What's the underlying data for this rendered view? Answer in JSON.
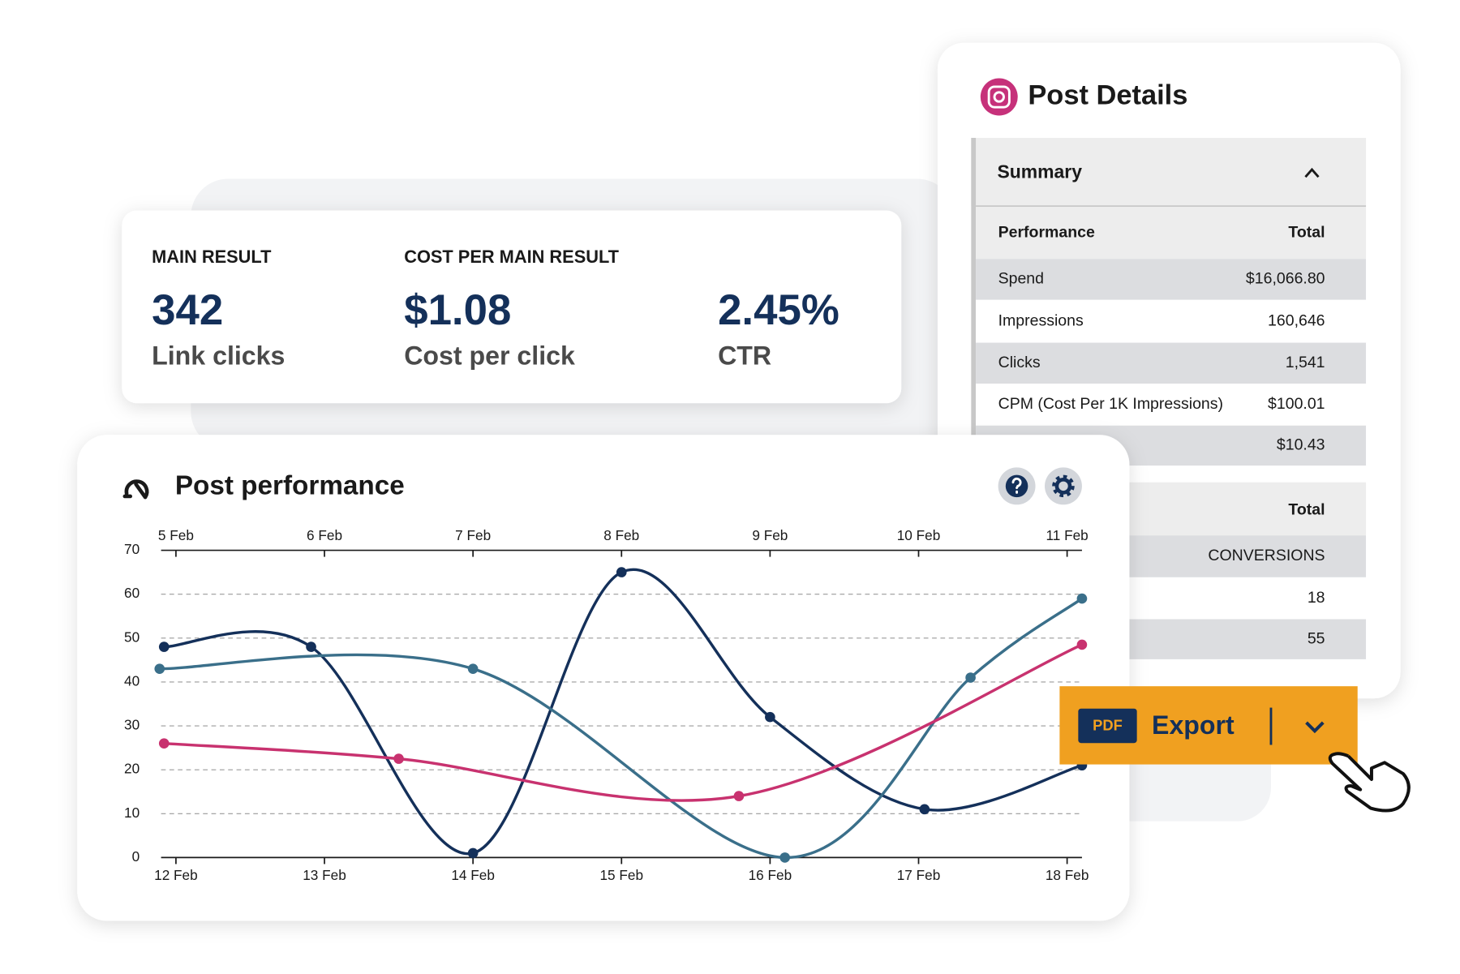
{
  "kpis": [
    {
      "label": "MAIN RESULT",
      "value": "342",
      "caption": "Link clicks"
    },
    {
      "label": "COST PER MAIN RESULT",
      "value": "$1.08",
      "caption": "Cost per click"
    },
    {
      "value": "2.45%",
      "caption": "CTR"
    }
  ],
  "post_details": {
    "title": "Post Details",
    "summary": "Summary",
    "performance": {
      "header": [
        "Performance",
        "Total"
      ],
      "rows": [
        {
          "label": "Spend",
          "value": "$16,066.80"
        },
        {
          "label": "Impressions",
          "value": "160,646"
        },
        {
          "label": "Clicks",
          "value": "1,541"
        },
        {
          "label": "CPM (Cost Per 1K Impressions)",
          "value": "$100.01"
        },
        {
          "value": "$10.43"
        }
      ]
    },
    "conversions": {
      "header": "Total",
      "rows": [
        "CONVERSIONS",
        "18",
        "55"
      ]
    }
  },
  "export": {
    "badge": "PDF",
    "label": "Export"
  },
  "chart_data": {
    "type": "line",
    "title": "Post performance",
    "xlim": [
      11.9,
      18.1
    ],
    "xticks": [
      {
        "value": 12,
        "label": "12 Feb"
      },
      {
        "value": 13,
        "label": "13 Feb"
      },
      {
        "value": 14,
        "label": "14 Feb"
      },
      {
        "value": 15,
        "label": "15 Feb"
      },
      {
        "value": 16,
        "label": "16 Feb"
      },
      {
        "value": 17,
        "label": "17 Feb"
      },
      {
        "value": 18,
        "label": "18 Feb"
      }
    ],
    "x2lim": [
      4.9,
      11.1
    ],
    "x2ticks": [
      {
        "value": 5,
        "label": "5 Feb"
      },
      {
        "value": 6,
        "label": "6 Feb"
      },
      {
        "value": 7,
        "label": "7 Feb"
      },
      {
        "value": 8,
        "label": "8 Feb"
      },
      {
        "value": 9,
        "label": "9 Feb"
      },
      {
        "value": 10,
        "label": "10 Feb"
      },
      {
        "value": 11,
        "label": "11 Feb"
      }
    ],
    "ylim": [
      0,
      70
    ],
    "yticks": [
      0,
      10,
      20,
      30,
      40,
      50,
      60,
      70
    ],
    "grid": true,
    "series": [
      {
        "color": "#14305a",
        "x": [
          11.92,
          12.91,
          14.0,
          15.0,
          16.0,
          17.04,
          18.1
        ],
        "values": [
          48,
          48,
          1,
          65,
          32,
          11,
          21
        ]
      },
      {
        "color": "#3a6f8a",
        "x": [
          11.89,
          14.0,
          16.1,
          17.35,
          18.1
        ],
        "values": [
          43,
          43,
          0,
          41,
          59
        ]
      },
      {
        "color": "#c8326f",
        "x": [
          11.92,
          13.5,
          15.79,
          18.1
        ],
        "values": [
          26,
          22.5,
          14,
          48.5
        ]
      }
    ]
  }
}
